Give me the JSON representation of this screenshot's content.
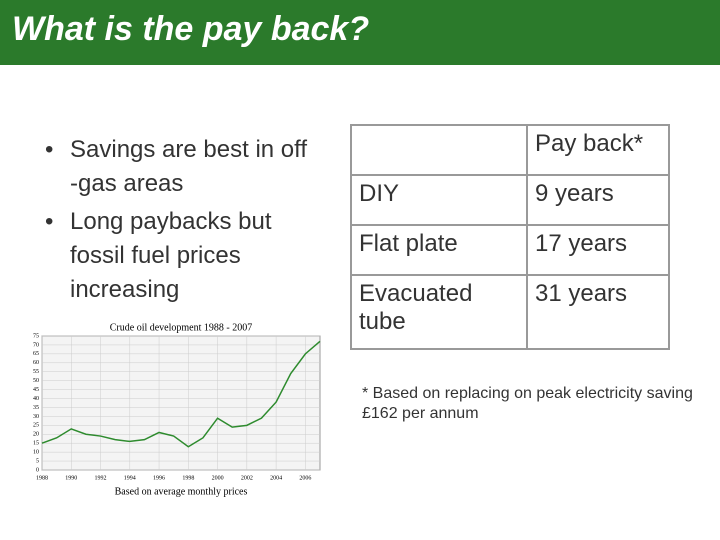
{
  "header": {
    "title": "What is the pay back?"
  },
  "bullets": [
    {
      "lines": [
        "Savings are best in off",
        "-gas areas"
      ]
    },
    {
      "lines": [
        "Long paybacks but",
        "fossil fuel prices",
        "increasing"
      ]
    }
  ],
  "table": {
    "header": "Pay back*",
    "rows": [
      [
        "DIY",
        "9 years"
      ],
      [
        "Flat plate",
        "17 years"
      ],
      [
        "Evacuated tube",
        "31 years"
      ]
    ]
  },
  "note": "* Based on replacing on peak electricity saving £162 per annum",
  "chart_data": {
    "type": "line",
    "title": "Crude oil development 1988 - 2007",
    "x_label": "Based on average monthly prices",
    "x": [
      1988,
      1989,
      1990,
      1991,
      1992,
      1993,
      1994,
      1995,
      1996,
      1997,
      1998,
      1999,
      2000,
      2001,
      2002,
      2003,
      2004,
      2005,
      2006,
      2007
    ],
    "values": [
      15,
      18,
      23,
      20,
      19,
      17,
      16,
      17,
      21,
      19,
      13,
      18,
      29,
      24,
      25,
      29,
      38,
      54,
      65,
      72
    ],
    "color": "#2e8b2e",
    "xlim": [
      1988,
      2007
    ],
    "xticks": [
      1988,
      1990,
      1992,
      1994,
      1996,
      1998,
      2000,
      2002,
      2004,
      2006
    ],
    "ylim": [
      0,
      75
    ],
    "yticks": [
      0,
      5,
      10,
      15,
      20,
      25,
      30,
      35,
      40,
      45,
      50,
      55,
      60,
      65,
      70,
      75
    ],
    "grid": true
  }
}
